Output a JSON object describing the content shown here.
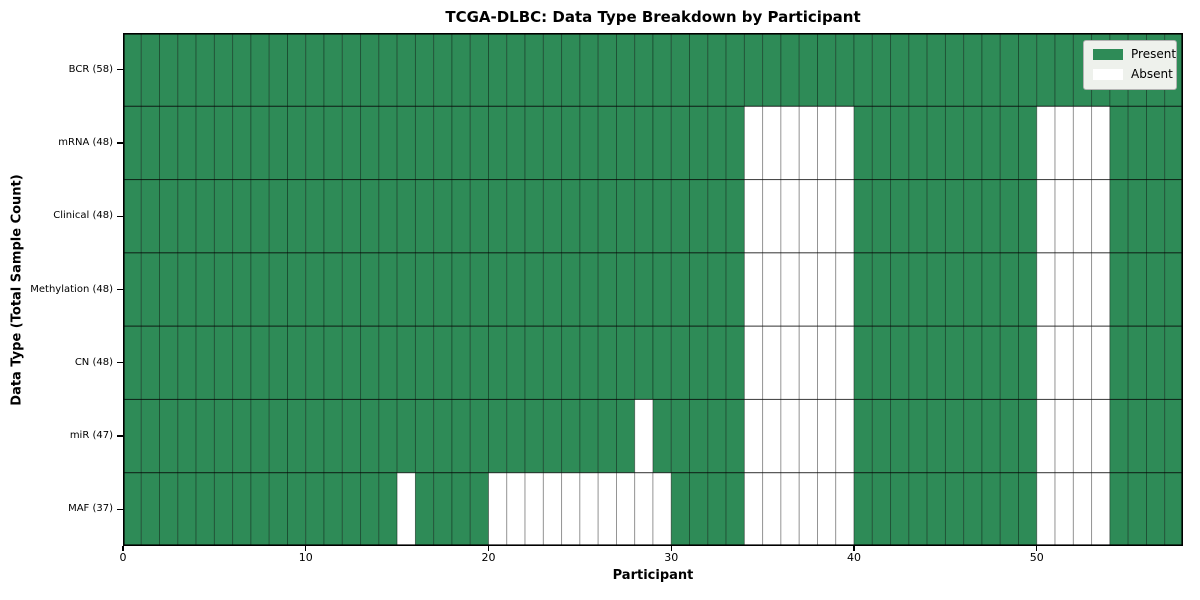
{
  "chart_data": {
    "type": "heatmap",
    "title": "TCGA-DLBC: Data Type Breakdown by Participant",
    "xlabel": "Participant",
    "ylabel": "Data Type (Total Sample Count)",
    "xlim": [
      0,
      58
    ],
    "n_cols": 58,
    "x_ticks": [
      0,
      10,
      20,
      30,
      40,
      50
    ],
    "grid": true,
    "rows": [
      {
        "label": "BCR (58)",
        "total": 58,
        "absent_cols": []
      },
      {
        "label": "mRNA (48)",
        "total": 48,
        "absent_cols": [
          34,
          35,
          36,
          37,
          38,
          39,
          50,
          51,
          52,
          53
        ]
      },
      {
        "label": "Clinical (48)",
        "total": 48,
        "absent_cols": [
          34,
          35,
          36,
          37,
          38,
          39,
          50,
          51,
          52,
          53
        ]
      },
      {
        "label": "Methylation (48)",
        "total": 48,
        "absent_cols": [
          34,
          35,
          36,
          37,
          38,
          39,
          50,
          51,
          52,
          53
        ]
      },
      {
        "label": "CN (48)",
        "total": 48,
        "absent_cols": [
          34,
          35,
          36,
          37,
          38,
          39,
          50,
          51,
          52,
          53
        ]
      },
      {
        "label": "miR (47)",
        "total": 47,
        "absent_cols": [
          28,
          34,
          35,
          36,
          37,
          38,
          39,
          50,
          51,
          52,
          53
        ]
      },
      {
        "label": "MAF (37)",
        "total": 37,
        "absent_cols": [
          15,
          20,
          21,
          22,
          23,
          24,
          25,
          26,
          27,
          28,
          29,
          34,
          35,
          36,
          37,
          38,
          39,
          50,
          51,
          52,
          53
        ]
      }
    ],
    "legend": {
      "position": "upper right",
      "entries": [
        {
          "label": "Present",
          "color": "#2e8b57"
        },
        {
          "label": "Absent",
          "color": "#ffffff"
        }
      ]
    },
    "colors": {
      "present": "#2e8b57",
      "absent": "#ffffff",
      "cell_edge": "rgba(0,0,0,0.35)",
      "row_edge": "rgba(0,0,0,0.5)",
      "spine": "#000000"
    }
  }
}
